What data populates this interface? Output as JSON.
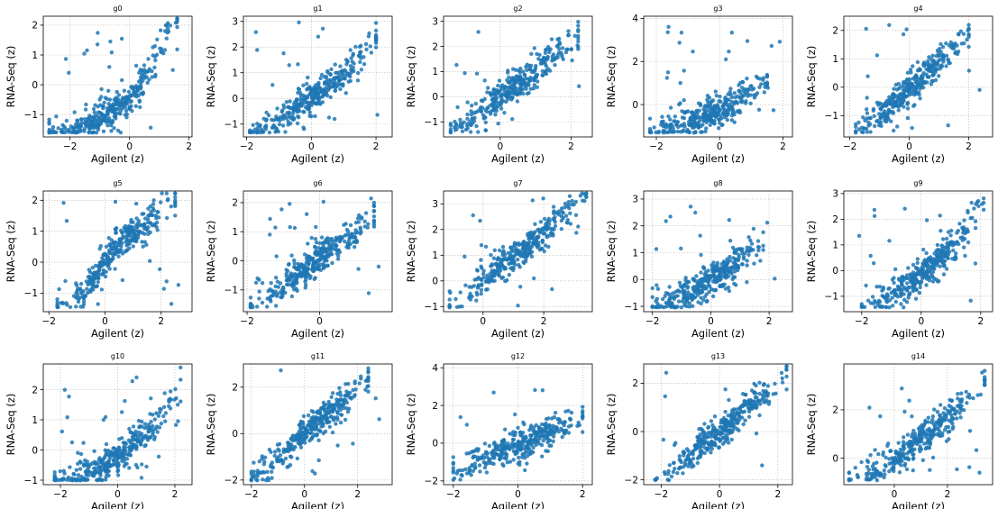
{
  "figure": {
    "point_color": "#1f77b4",
    "grid": "dotted",
    "n_points_per_panel": 360
  },
  "chart_data": [
    {
      "type": "scatter",
      "title": "g0",
      "xlabel": "Agilent (z)",
      "ylabel": "RNA-Seq (z)",
      "xlim": [
        -2.9,
        2.1
      ],
      "ylim": [
        -1.75,
        2.3
      ],
      "xticks": [
        -2,
        0,
        2
      ],
      "yticks": [
        -1,
        0,
        1,
        2
      ],
      "x": [
        -2.7,
        -2.0,
        -1.5,
        -1.0,
        -0.5,
        0.0,
        0.3,
        0.6,
        0.8,
        1.0,
        1.2,
        1.4,
        1.6
      ],
      "y": [
        -1.6,
        -1.5,
        -1.3,
        -1.1,
        -0.8,
        -0.4,
        0.0,
        0.4,
        0.8,
        1.1,
        1.5,
        1.9,
        2.2
      ]
    },
    {
      "type": "scatter",
      "title": "g1",
      "xlabel": "Agilent (z)",
      "ylabel": "RNA-Seq (z)",
      "xlim": [
        -2.1,
        2.5
      ],
      "ylim": [
        -1.5,
        3.2
      ],
      "xticks": [
        -2,
        0,
        2
      ],
      "yticks": [
        -1,
        0,
        1,
        2,
        3
      ],
      "x": [
        -1.9,
        -1.2,
        -0.6,
        0.0,
        0.5,
        1.0,
        1.5,
        2.0
      ],
      "y": [
        -1.4,
        -1.0,
        -0.5,
        0.0,
        0.5,
        1.0,
        1.6,
        2.4
      ]
    },
    {
      "type": "scatter",
      "title": "g2",
      "xlabel": "Agilent (z)",
      "ylabel": "RNA-Seq (z)",
      "xlim": [
        -1.6,
        2.6
      ],
      "ylim": [
        -1.6,
        3.2
      ],
      "xticks": [
        0,
        2
      ],
      "yticks": [
        -1,
        0,
        1,
        2,
        3
      ],
      "x": [
        -1.4,
        -0.8,
        -0.2,
        0.4,
        1.0,
        1.6,
        2.2
      ],
      "y": [
        -1.3,
        -0.8,
        -0.2,
        0.4,
        1.0,
        1.7,
        2.5
      ]
    },
    {
      "type": "scatter",
      "title": "g3",
      "xlabel": "Agilent (z)",
      "ylabel": "RNA-Seq (z)",
      "xlim": [
        -2.4,
        2.3
      ],
      "ylim": [
        -1.5,
        4.1
      ],
      "xticks": [
        -2,
        0,
        2
      ],
      "yticks": [
        0,
        2,
        4
      ],
      "x": [
        -2.2,
        -1.5,
        -0.8,
        0.0,
        0.5,
        1.0,
        1.5
      ],
      "y": [
        -1.2,
        -1.0,
        -0.7,
        -0.3,
        0.1,
        0.6,
        1.0
      ]
    },
    {
      "type": "scatter",
      "title": "g4",
      "xlabel": "Agilent (z)",
      "ylabel": "RNA-Seq (z)",
      "xlim": [
        -2.2,
        2.8
      ],
      "ylim": [
        -1.75,
        2.5
      ],
      "xticks": [
        -2,
        0,
        2
      ],
      "yticks": [
        -1,
        0,
        1,
        2
      ],
      "x": [
        -1.8,
        -1.0,
        -0.4,
        0.2,
        0.8,
        1.4,
        2.0
      ],
      "y": [
        -1.6,
        -1.0,
        -0.5,
        0.1,
        0.7,
        1.3,
        1.9
      ]
    },
    {
      "type": "scatter",
      "title": "g5",
      "xlabel": "Agilent (z)",
      "ylabel": "RNA-Seq (z)",
      "xlim": [
        -2.2,
        3.1
      ],
      "ylim": [
        -1.6,
        2.3
      ],
      "xticks": [
        -2,
        0,
        2
      ],
      "yticks": [
        -1,
        0,
        1,
        2
      ],
      "x": [
        -1.7,
        -0.8,
        -0.3,
        0.2,
        0.8,
        1.5,
        2.5
      ],
      "y": [
        -1.5,
        -1.0,
        -0.4,
        0.3,
        0.8,
        1.2,
        2.1
      ]
    },
    {
      "type": "scatter",
      "title": "g6",
      "xlabel": "Agilent (z)",
      "ylabel": "RNA-Seq (z)",
      "xlim": [
        -2.1,
        2.0
      ],
      "ylim": [
        -1.75,
        2.4
      ],
      "xticks": [
        -2,
        0
      ],
      "yticks": [
        -1,
        0,
        1,
        2
      ],
      "x": [
        -1.9,
        -1.2,
        -0.5,
        0.0,
        0.5,
        1.0,
        1.5
      ],
      "y": [
        -1.5,
        -1.0,
        -0.4,
        0.1,
        0.6,
        1.0,
        1.7
      ]
    },
    {
      "type": "scatter",
      "title": "g7",
      "xlabel": "Agilent (z)",
      "ylabel": "RNA-Seq (z)",
      "xlim": [
        -1.3,
        3.6
      ],
      "ylim": [
        -1.2,
        3.5
      ],
      "xticks": [
        0,
        2
      ],
      "yticks": [
        -1,
        0,
        1,
        2,
        3
      ],
      "x": [
        -1.1,
        -0.5,
        0.0,
        0.6,
        1.2,
        2.0,
        3.4
      ],
      "y": [
        -1.0,
        -0.6,
        0.0,
        0.6,
        1.1,
        1.9,
        3.3
      ]
    },
    {
      "type": "scatter",
      "title": "g8",
      "xlabel": "Agilent (z)",
      "ylabel": "RNA-Seq (z)",
      "xlim": [
        -2.3,
        2.8
      ],
      "ylim": [
        -1.2,
        3.3
      ],
      "xticks": [
        -2,
        0,
        2
      ],
      "yticks": [
        -1,
        0,
        1,
        2,
        3
      ],
      "x": [
        -2.0,
        -1.2,
        -0.5,
        0.0,
        0.6,
        1.2,
        1.8
      ],
      "y": [
        -1.0,
        -0.7,
        -0.4,
        0.0,
        0.4,
        0.9,
        1.5
      ]
    },
    {
      "type": "scatter",
      "title": "g9",
      "xlabel": "Agilent (z)",
      "ylabel": "RNA-Seq (z)",
      "xlim": [
        -2.6,
        2.4
      ],
      "ylim": [
        -1.6,
        3.1
      ],
      "xticks": [
        -2,
        0,
        2
      ],
      "yticks": [
        -1,
        0,
        1,
        2,
        3
      ],
      "x": [
        -2.0,
        -1.2,
        -0.5,
        0.0,
        0.6,
        1.2,
        2.1
      ],
      "y": [
        -1.5,
        -1.1,
        -0.6,
        -0.1,
        0.5,
        1.1,
        2.6
      ]
    },
    {
      "type": "scatter",
      "title": "g10",
      "xlabel": "Agilent (z)",
      "ylabel": "RNA-Seq (z)",
      "xlim": [
        -2.6,
        2.6
      ],
      "ylim": [
        -1.15,
        2.85
      ],
      "xticks": [
        -2,
        0,
        2
      ],
      "yticks": [
        -1,
        0,
        1,
        2
      ],
      "x": [
        -2.2,
        -1.2,
        -0.4,
        0.2,
        0.8,
        1.4,
        2.2
      ],
      "y": [
        -1.0,
        -0.8,
        -0.5,
        -0.1,
        0.4,
        1.0,
        2.2
      ]
    },
    {
      "type": "scatter",
      "title": "g11",
      "xlabel": "Agilent (z)",
      "ylabel": "RNA-Seq (z)",
      "xlim": [
        -2.3,
        3.3
      ],
      "ylim": [
        -2.2,
        3.0
      ],
      "xticks": [
        -2,
        0,
        2
      ],
      "yticks": [
        -2,
        0,
        2
      ],
      "x": [
        -2.0,
        -1.2,
        -0.5,
        0.0,
        0.6,
        1.4,
        2.4
      ],
      "y": [
        -2.0,
        -1.2,
        -0.5,
        0.0,
        0.6,
        1.3,
        2.3
      ]
    },
    {
      "type": "scatter",
      "title": "g12",
      "xlabel": "Agilent (z)",
      "ylabel": "RNA-Seq (z)",
      "xlim": [
        -2.3,
        2.3
      ],
      "ylim": [
        -2.2,
        4.2
      ],
      "xticks": [
        -2,
        0,
        2
      ],
      "yticks": [
        -2,
        0,
        2,
        4
      ],
      "x": [
        -2.0,
        -1.0,
        0.0,
        1.0,
        2.0
      ],
      "y": [
        -1.5,
        -0.8,
        -0.1,
        0.6,
        1.3
      ]
    },
    {
      "type": "scatter",
      "title": "g13",
      "xlabel": "Agilent (z)",
      "ylabel": "RNA-Seq (z)",
      "xlim": [
        -2.6,
        2.5
      ],
      "ylim": [
        -2.2,
        2.8
      ],
      "xticks": [
        -2,
        0,
        2
      ],
      "yticks": [
        -2,
        0,
        2
      ],
      "x": [
        -2.2,
        -1.2,
        -0.4,
        0.2,
        0.8,
        1.5,
        2.3
      ],
      "y": [
        -2.0,
        -1.2,
        -0.4,
        0.2,
        0.8,
        1.5,
        2.4
      ]
    },
    {
      "type": "scatter",
      "title": "g14",
      "xlabel": "Agilent (z)",
      "ylabel": "RNA-Seq (z)",
      "xlim": [
        -1.9,
        3.7
      ],
      "ylim": [
        -1.1,
        3.9
      ],
      "xticks": [
        0,
        2
      ],
      "yticks": [
        0,
        2
      ],
      "x": [
        -1.7,
        -1.0,
        -0.3,
        0.3,
        1.0,
        2.0,
        3.4
      ],
      "y": [
        -1.0,
        -0.7,
        -0.3,
        0.2,
        0.8,
        1.6,
        3.3
      ]
    }
  ]
}
